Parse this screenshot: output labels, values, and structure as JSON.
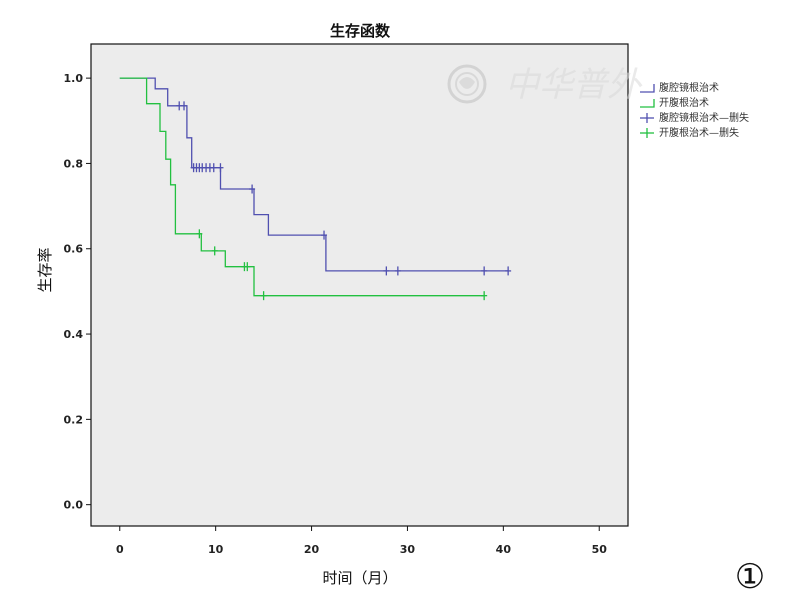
{
  "chart_data": {
    "type": "line",
    "subtype": "kaplan-meier",
    "title": "生存函数",
    "xlabel": "时间（月）",
    "ylabel": "生存率",
    "xlim": [
      -3,
      53
    ],
    "ylim": [
      -0.05,
      1.08
    ],
    "xticks": [
      0,
      10,
      20,
      30,
      40,
      50
    ],
    "yticks": [
      0.0,
      0.2,
      0.4,
      0.6,
      0.8,
      1.0
    ],
    "xtick_labels": [
      "0",
      "10",
      "20",
      "30",
      "40",
      "50"
    ],
    "ytick_labels": [
      "0.0",
      "0.2",
      "0.4",
      "0.6",
      "0.8",
      "1.0"
    ],
    "grid": false,
    "legend_position": "right",
    "background_color": "#ececec",
    "series": [
      {
        "name": "腹腔镜根治术",
        "color": "#5050b0",
        "x": [
          0,
          3.7,
          3.7,
          5.0,
          5.0,
          7.0,
          7.0,
          7.5,
          7.5,
          10.5,
          10.5,
          14.0,
          14.0,
          15.5,
          15.5,
          21.5,
          21.5,
          40.5
        ],
        "y": [
          1.0,
          1.0,
          0.975,
          0.975,
          0.935,
          0.935,
          0.86,
          0.86,
          0.79,
          0.79,
          0.74,
          0.74,
          0.68,
          0.68,
          0.632,
          0.632,
          0.548,
          0.548
        ],
        "censored": [
          {
            "x": 6.2,
            "y": 0.935
          },
          {
            "x": 6.7,
            "y": 0.935
          },
          {
            "x": 7.7,
            "y": 0.79
          },
          {
            "x": 8.0,
            "y": 0.79
          },
          {
            "x": 8.3,
            "y": 0.79
          },
          {
            "x": 8.6,
            "y": 0.79
          },
          {
            "x": 9.0,
            "y": 0.79
          },
          {
            "x": 9.4,
            "y": 0.79
          },
          {
            "x": 9.8,
            "y": 0.79
          },
          {
            "x": 10.5,
            "y": 0.79
          },
          {
            "x": 13.8,
            "y": 0.74
          },
          {
            "x": 21.3,
            "y": 0.632
          },
          {
            "x": 27.8,
            "y": 0.548
          },
          {
            "x": 29.0,
            "y": 0.548
          },
          {
            "x": 38.0,
            "y": 0.548
          },
          {
            "x": 40.5,
            "y": 0.548
          }
        ]
      },
      {
        "name": "开腹根治术",
        "color": "#22c040",
        "x": [
          0,
          2.8,
          2.8,
          4.2,
          4.2,
          4.8,
          4.8,
          5.3,
          5.3,
          5.8,
          5.8,
          8.5,
          8.5,
          11.0,
          11.0,
          14.0,
          14.0,
          38.0
        ],
        "y": [
          1.0,
          1.0,
          0.94,
          0.94,
          0.875,
          0.875,
          0.81,
          0.81,
          0.75,
          0.75,
          0.635,
          0.635,
          0.595,
          0.595,
          0.558,
          0.558,
          0.49,
          0.49
        ],
        "censored": [
          {
            "x": 8.3,
            "y": 0.635
          },
          {
            "x": 9.9,
            "y": 0.595
          },
          {
            "x": 13.0,
            "y": 0.558
          },
          {
            "x": 13.3,
            "y": 0.558
          },
          {
            "x": 15.0,
            "y": 0.49
          },
          {
            "x": 38.0,
            "y": 0.49
          }
        ]
      }
    ],
    "legend": [
      {
        "label": "腹腔镜根治术",
        "color": "#5050b0",
        "marker": "line"
      },
      {
        "label": "开腹根治术",
        "color": "#22c040",
        "marker": "line"
      },
      {
        "label": "腹腔镜根治术—删失",
        "color": "#5050b0",
        "marker": "plus"
      },
      {
        "label": "开腹根治术—删失",
        "color": "#22c040",
        "marker": "plus"
      }
    ]
  },
  "watermark": {
    "text": "中华普外"
  },
  "panel_number": "①"
}
